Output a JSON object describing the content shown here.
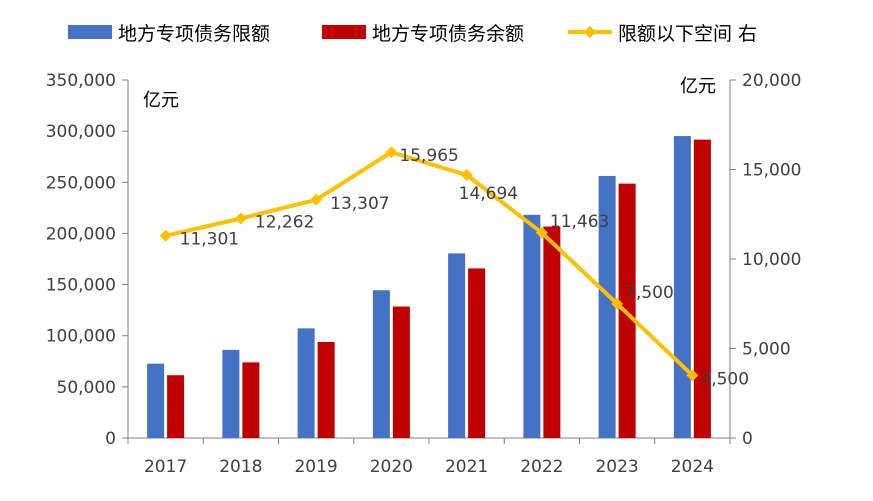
{
  "chart_data": {
    "type": "bar",
    "categories": [
      "2017",
      "2018",
      "2019",
      "2020",
      "2021",
      "2022",
      "2023",
      "2024"
    ],
    "series": [
      {
        "name": "地方专项债务限额",
        "type": "bar",
        "axis": "left",
        "color": "#4472C4",
        "values": [
          72685,
          86185,
          107185,
          144485,
          180485,
          218185,
          256185,
          295185
        ]
      },
      {
        "name": "地方专项债务余额",
        "type": "bar",
        "axis": "left",
        "color": "#C00000",
        "values": [
          61384,
          73923,
          93878,
          128520,
          165791,
          206722,
          248685,
          291685
        ]
      },
      {
        "name": "限额以下空间 右",
        "type": "line",
        "axis": "right",
        "color": "#FFC000",
        "values": [
          11301,
          12262,
          13307,
          15965,
          14694,
          11463,
          7500,
          3500
        ],
        "labels": [
          "11,301",
          "12,262",
          "13,307",
          "15,965",
          "14,694",
          "11,463",
          "7,500",
          "3,500"
        ]
      }
    ],
    "y_left": {
      "unit_label": "亿元",
      "ylim": [
        0,
        350000
      ],
      "ticks": [
        "0",
        "50,000",
        "100,000",
        "150,000",
        "200,000",
        "250,000",
        "300,000",
        "350,000"
      ]
    },
    "y_right": {
      "unit_label": "亿元",
      "ylim": [
        0,
        20000
      ],
      "ticks": [
        "0",
        "5,000",
        "10,000",
        "15,000",
        "20,000"
      ]
    },
    "legend_position": "top",
    "grid": false
  }
}
